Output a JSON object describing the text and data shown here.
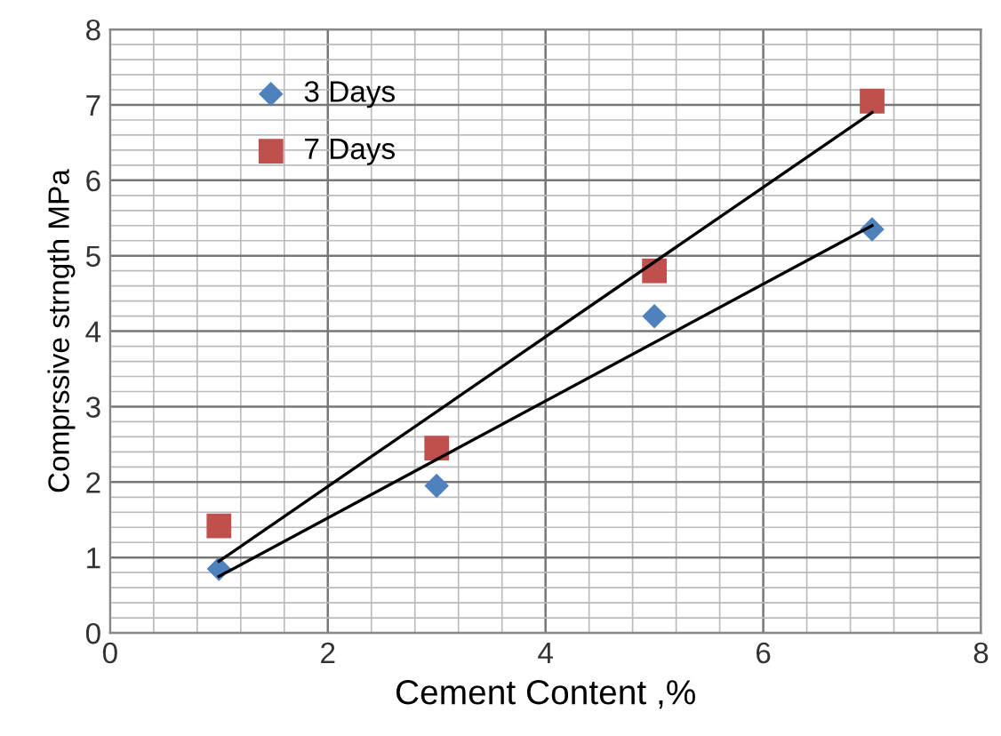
{
  "chart_data": {
    "type": "scatter",
    "xlabel": "Cement Content ,%",
    "ylabel": "Comprssive strngth MPa",
    "xlim": [
      0,
      8
    ],
    "ylim": [
      0,
      8
    ],
    "xticks": [
      0,
      2,
      4,
      6,
      8
    ],
    "yticks": [
      0,
      1,
      2,
      3,
      4,
      5,
      6,
      7,
      8
    ],
    "grid": true,
    "legend": "top left",
    "series": [
      {
        "name": "3 Days",
        "color": "#4f81bd",
        "marker": "diamond",
        "x": [
          1,
          3,
          5,
          7
        ],
        "values": [
          0.85,
          1.95,
          4.2,
          5.35
        ]
      },
      {
        "name": "7 Days",
        "color": "#c0504d",
        "marker": "square",
        "x": [
          1,
          3,
          5,
          7
        ],
        "values": [
          1.42,
          2.45,
          4.8,
          7.05
        ]
      },
      {
        "type": "line",
        "color": "#000000",
        "x": [
          1,
          7
        ],
        "values": [
          0.75,
          5.4
        ]
      },
      {
        "type": "line",
        "color": "#000000",
        "x": [
          1,
          7
        ],
        "values": [
          0.95,
          6.9
        ]
      }
    ]
  }
}
